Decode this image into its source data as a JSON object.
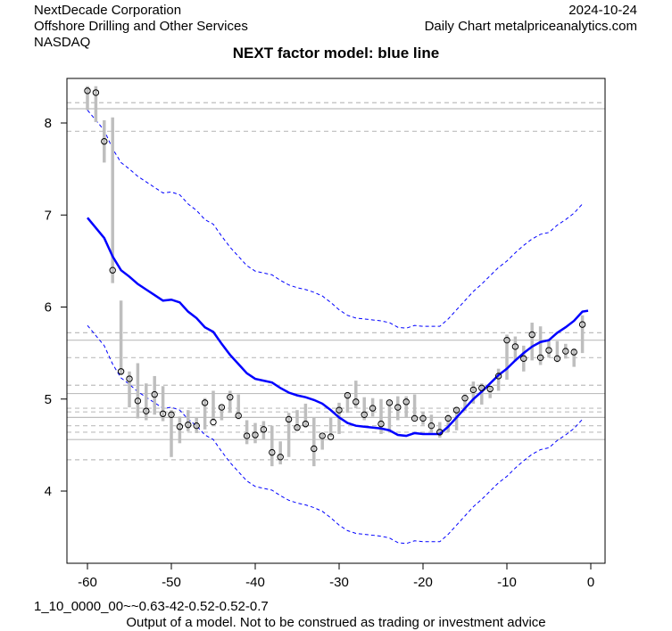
{
  "header": {
    "company": "NextDecade Corporation",
    "sector": "Offshore Drilling and Other Services",
    "exchange": "NASDAQ",
    "date": "2024-10-24",
    "source": "Daily Chart metalpriceanalytics.com"
  },
  "footer": {
    "params": "1_10_0000_00~~0.63-42-0.52-0.52-0.7",
    "disclaimer": "Output of a model. Not to be construed as trading or investment advice"
  },
  "chart_data": {
    "type": "line",
    "title": "NEXT factor model: blue line",
    "xlabel": "",
    "ylabel": "",
    "xlim": [
      -62.5,
      1.7
    ],
    "ylim": [
      3.2,
      8.5
    ],
    "x_ticks": [
      -60,
      -50,
      -40,
      -30,
      -20,
      -10,
      0
    ],
    "y_ticks": [
      4,
      5,
      6,
      7,
      8
    ],
    "colors": {
      "model": "#0000ff",
      "bars": "#bebebe",
      "hlines": "#bebebe"
    },
    "hlines_solid": [
      8.155,
      5.64,
      5.06,
      4.8,
      4.56
    ],
    "hlines_dashed": [
      8.22,
      7.91,
      5.72,
      5.45,
      5.15,
      4.9,
      4.86,
      4.71,
      4.64,
      4.34
    ],
    "x": [
      -60,
      -59,
      -58,
      -57,
      -56,
      -55,
      -54,
      -53,
      -52,
      -51,
      -50,
      -49,
      -48,
      -47,
      -46,
      -45,
      -44,
      -43,
      -42,
      -41,
      -40,
      -39,
      -38,
      -37,
      -36,
      -35,
      -34,
      -33,
      -32,
      -31,
      -30,
      -29,
      -28,
      -27,
      -26,
      -25,
      -24,
      -23,
      -22,
      -21,
      -20,
      -19,
      -18,
      -17,
      -16,
      -15,
      -14,
      -13,
      -12,
      -11,
      -10,
      -9,
      -8,
      -7,
      -6,
      -5,
      -4,
      -3,
      -2,
      -1
    ],
    "price_close": [
      8.35,
      8.33,
      7.8,
      6.4,
      5.3,
      5.22,
      4.98,
      4.87,
      5.05,
      4.84,
      4.83,
      4.7,
      4.72,
      4.71,
      4.96,
      4.75,
      4.91,
      5.02,
      4.82,
      4.6,
      4.61,
      4.67,
      4.42,
      4.37,
      4.78,
      4.69,
      4.73,
      4.46,
      4.6,
      4.59,
      4.88,
      5.04,
      4.97,
      4.83,
      4.9,
      4.73,
      4.96,
      4.91,
      4.97,
      4.79,
      4.79,
      4.71,
      4.64,
      4.79,
      4.88,
      5.01,
      5.1,
      5.12,
      5.11,
      5.25,
      5.64,
      5.57,
      5.44,
      5.7,
      5.45,
      5.53,
      5.44,
      5.52,
      5.51,
      5.81
    ],
    "price_high": [
      8.4,
      8.4,
      8.03,
      8.06,
      6.07,
      5.3,
      5.39,
      5.17,
      5.25,
      5.14,
      4.88,
      4.81,
      4.88,
      4.8,
      5.01,
      5.09,
      4.93,
      5.09,
      5.05,
      4.77,
      4.74,
      4.76,
      4.71,
      4.54,
      4.85,
      4.88,
      4.95,
      4.8,
      4.62,
      4.8,
      4.96,
      5.07,
      5.2,
      5.02,
      5.01,
      5.0,
      4.98,
      5.03,
      5.03,
      5.05,
      4.86,
      4.83,
      4.75,
      4.83,
      4.9,
      5.05,
      5.19,
      5.17,
      5.14,
      5.33,
      5.7,
      5.68,
      5.58,
      5.83,
      5.79,
      5.65,
      5.63,
      5.6,
      5.55,
      5.91
    ],
    "price_low": [
      8.14,
      8.01,
      7.57,
      6.26,
      5.26,
      4.91,
      4.79,
      4.77,
      4.83,
      4.76,
      4.37,
      4.52,
      4.65,
      4.63,
      4.67,
      4.76,
      4.77,
      4.85,
      4.78,
      4.51,
      4.52,
      4.56,
      4.27,
      4.29,
      4.37,
      4.66,
      4.69,
      4.27,
      4.45,
      4.59,
      4.62,
      4.85,
      4.9,
      4.77,
      4.81,
      4.62,
      4.64,
      4.77,
      4.8,
      4.77,
      4.72,
      4.64,
      4.58,
      4.64,
      4.66,
      4.87,
      4.95,
      4.94,
      5.01,
      5.09,
      5.21,
      5.41,
      5.3,
      5.42,
      5.37,
      5.45,
      5.4,
      5.44,
      5.35,
      5.5
    ],
    "model": [
      6.97,
      6.86,
      6.75,
      6.55,
      6.4,
      6.33,
      6.25,
      6.19,
      6.13,
      6.07,
      6.08,
      6.05,
      5.95,
      5.88,
      5.78,
      5.73,
      5.6,
      5.48,
      5.38,
      5.28,
      5.22,
      5.2,
      5.18,
      5.12,
      5.07,
      5.04,
      5.02,
      4.99,
      4.95,
      4.88,
      4.8,
      4.74,
      4.71,
      4.7,
      4.69,
      4.68,
      4.66,
      4.61,
      4.6,
      4.63,
      4.62,
      4.62,
      4.62,
      4.7,
      4.8,
      4.9,
      5.0,
      5.08,
      5.17,
      5.26,
      5.33,
      5.42,
      5.5,
      5.57,
      5.62,
      5.64,
      5.72,
      5.78,
      5.85,
      5.95
    ],
    "model_model_last": 5.96,
    "band_halfwidth": 1.17
  }
}
